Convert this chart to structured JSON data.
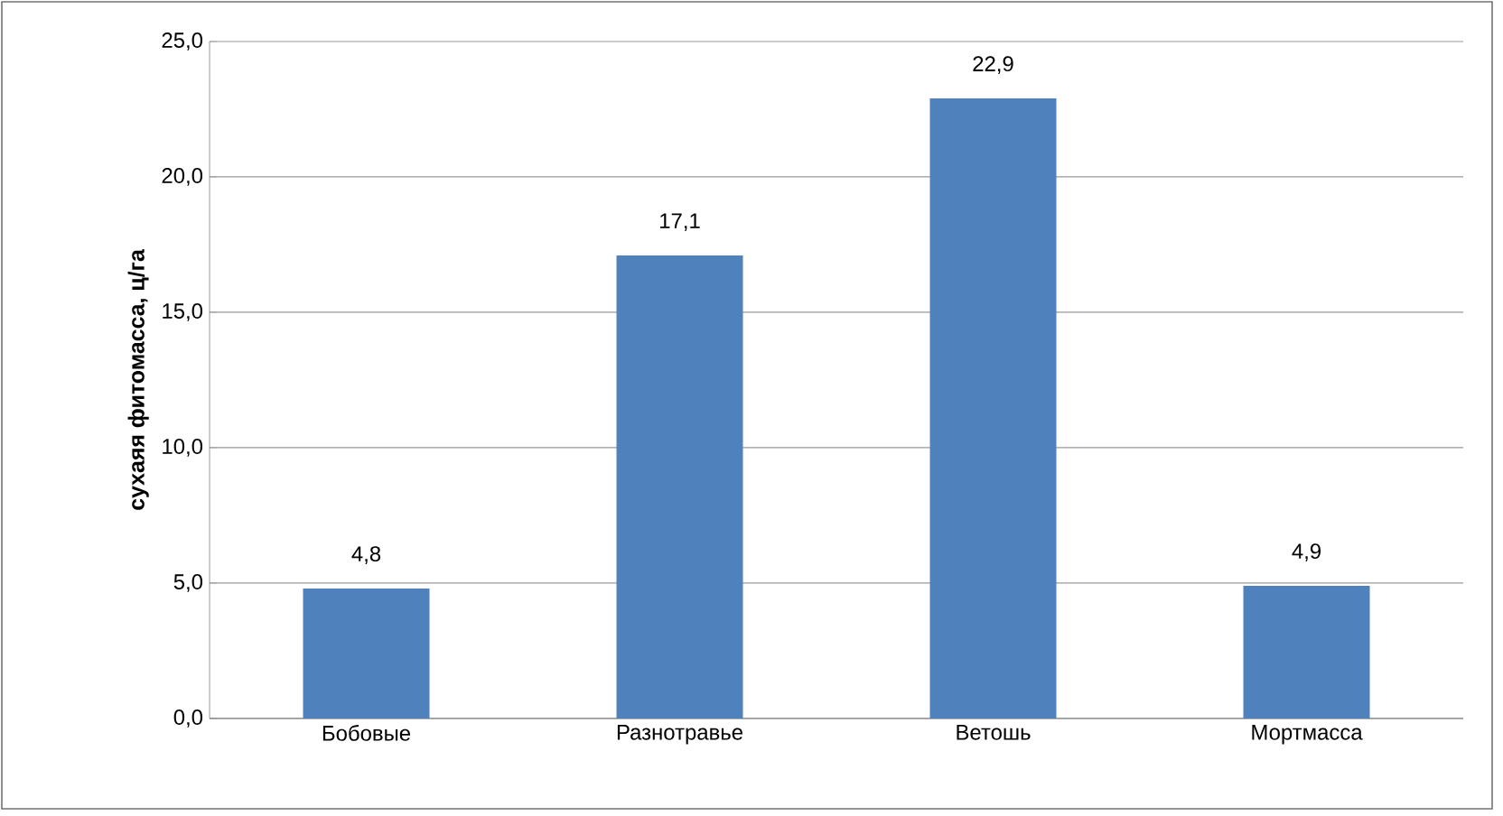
{
  "chart_data": {
    "type": "bar",
    "ylabel": "сухаяя фитомасса, ц/га",
    "categories": [
      "Бобовые",
      "Разнотравье",
      "Ветошь",
      "Мортмасса"
    ],
    "values": [
      4.8,
      17.1,
      22.9,
      4.9
    ],
    "value_labels": [
      "4,8",
      "17,1",
      "22,9",
      "4,9"
    ],
    "color": "#4f81bd",
    "ylim": [
      0,
      25
    ],
    "yticks": [
      {
        "value": 0,
        "label": "0,0"
      },
      {
        "value": 5,
        "label": "5,0"
      },
      {
        "value": 10,
        "label": "10,0"
      },
      {
        "value": 15,
        "label": "15,0"
      },
      {
        "value": 20,
        "label": "20,0"
      },
      {
        "value": 25,
        "label": "25,0"
      }
    ],
    "grid": "y"
  }
}
